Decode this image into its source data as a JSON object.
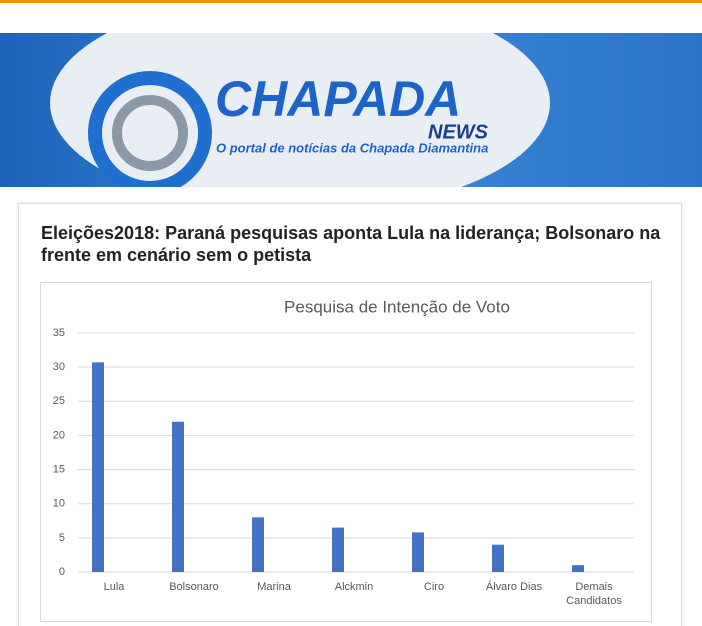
{
  "header": {
    "logo": "CHAPADA",
    "logo_sub": "NEWS",
    "tagline": "O portal de notícias da Chapada Diamantina"
  },
  "article": {
    "title": "Eleições2018: Paraná pesquisas aponta Lula na liderança; Bolsonaro na frente em cenário sem o petista"
  },
  "chart_data": {
    "type": "bar",
    "title": "Pesquisa de Intenção de Voto",
    "categories": [
      "Lula",
      "Bolsonaro",
      "Marina",
      "Alckmin",
      "Ciro",
      "Álvaro Dias",
      "Demais Candidatos"
    ],
    "values": [
      30.7,
      22,
      8,
      6.5,
      5.8,
      4,
      1
    ],
    "color": "#4472c4",
    "ylim": [
      0,
      35
    ],
    "yticks": [
      0,
      5,
      10,
      15,
      20,
      25,
      30,
      35
    ],
    "grid": true
  }
}
